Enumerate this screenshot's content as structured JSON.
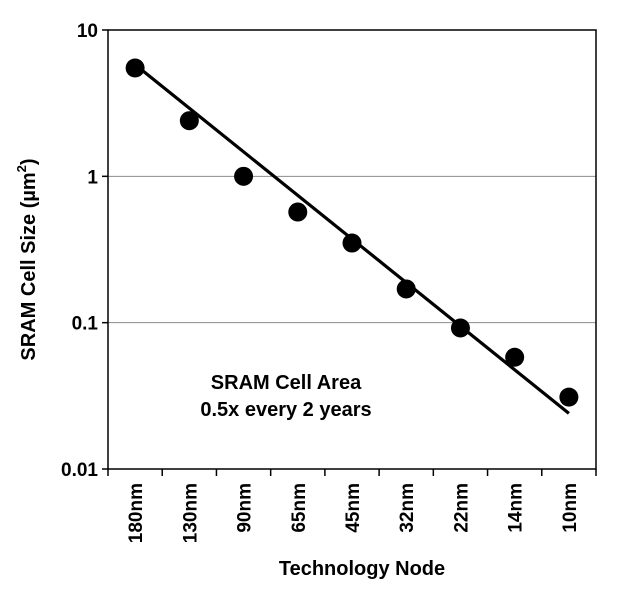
{
  "chart_data": {
    "type": "scatter",
    "title": "",
    "xlabel": "Technology Node",
    "ylabel": "SRAM Cell Size (µm²)",
    "ylabel_parts": {
      "main": "SRAM Cell Size (µm",
      "sup": "2",
      "close": ")"
    },
    "y_scale": "log",
    "ylim": [
      0.01,
      10
    ],
    "y_ticks": [
      {
        "value": 10,
        "label": "10"
      },
      {
        "value": 1,
        "label": "1"
      },
      {
        "value": 0.1,
        "label": "0.1"
      },
      {
        "value": 0.01,
        "label": "0.01"
      }
    ],
    "gridlines_at": [
      1,
      0.1
    ],
    "categories": [
      "180nm",
      "130nm",
      "90nm",
      "65nm",
      "45nm",
      "32nm",
      "22nm",
      "14nm",
      "10nm"
    ],
    "series": [
      {
        "values": [
          5.5,
          2.4,
          1.0,
          0.57,
          0.35,
          0.17,
          0.092,
          0.058,
          0.031
        ],
        "color": "#000000"
      }
    ],
    "trendline": {
      "start": {
        "x": "180nm",
        "y": 5.8
      },
      "end": {
        "x": "10nm",
        "y": 0.024
      },
      "color": "#000000"
    },
    "annotation": {
      "line1": "SRAM Cell Area",
      "line2": "0.5x every 2 years"
    },
    "grid": true,
    "legend": "none"
  }
}
